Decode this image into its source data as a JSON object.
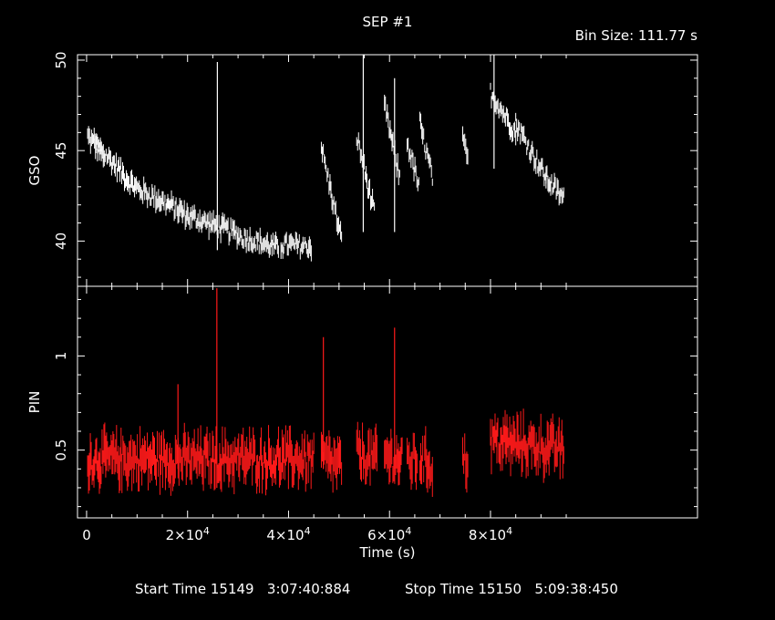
{
  "chart_data": {
    "type": "line",
    "title": "SEP #1",
    "bin_size": "Bin Size: 111.77 s",
    "xlabel": "Time (s)",
    "xlim": [
      -3000,
      120000
    ],
    "x_ticks": [
      {
        "value": 0,
        "label": "0"
      },
      {
        "value": 20000,
        "label": "2×10",
        "exp": "4"
      },
      {
        "value": 40000,
        "label": "4×10",
        "exp": "4"
      },
      {
        "value": 60000,
        "label": "6×10",
        "exp": "4"
      },
      {
        "value": 80000,
        "label": "8×10",
        "exp": "4"
      }
    ],
    "x_max_axis": 96500,
    "footer": {
      "start": "Start Time 15149   3:07:40:884",
      "stop": "Stop Time 15150   5:09:38:450"
    },
    "panels": [
      {
        "name": "GSO",
        "ylabel": "GSO",
        "ylim": [
          37.5,
          50.3
        ],
        "y_ticks": [
          40,
          45,
          50
        ],
        "color": "#ffffff",
        "segments": [
          {
            "x0": 200,
            "x1": 3500,
            "y0": 45.8,
            "y1": 44.6
          },
          {
            "x0": 1500,
            "x1": 9500,
            "y0": 45.5,
            "y1": 43.0
          },
          {
            "x0": 9500,
            "x1": 19000,
            "y0": 43.0,
            "y1": 41.6
          },
          {
            "x0": 19000,
            "x1": 30000,
            "y0": 41.5,
            "y1": 40.4
          },
          {
            "x0": 30000,
            "x1": 38000,
            "y0": 40.3,
            "y1": 39.6
          },
          {
            "x0": 38500,
            "x1": 44500,
            "y0": 39.8,
            "y1": 39.7
          },
          {
            "x0": 46500,
            "x1": 50500,
            "y0": 45.2,
            "y1": 40.0
          },
          {
            "x0": 53500,
            "x1": 57000,
            "y0": 45.8,
            "y1": 41.5
          },
          {
            "x0": 59000,
            "x1": 62000,
            "y0": 47.5,
            "y1": 43.5
          },
          {
            "x0": 63500,
            "x1": 65800,
            "y0": 45.5,
            "y1": 43.0
          },
          {
            "x0": 66000,
            "x1": 68500,
            "y0": 46.5,
            "y1": 43.5
          },
          {
            "x0": 74500,
            "x1": 75500,
            "y0": 45.5,
            "y1": 44.5
          },
          {
            "x0": 80000,
            "x1": 85000,
            "y0": 48.2,
            "y1": 46.0
          },
          {
            "x0": 85000,
            "x1": 91000,
            "y0": 46.5,
            "y1": 43.5
          },
          {
            "x0": 91000,
            "x1": 94500,
            "y0": 43.5,
            "y1": 42.3
          }
        ],
        "spikes": [
          {
            "x": 25900,
            "lo": 39.5,
            "hi": 49.9
          },
          {
            "x": 54800,
            "lo": 40.5,
            "hi": 50.3
          },
          {
            "x": 80700,
            "lo": 44.0,
            "hi": 50.3
          },
          {
            "x": 61000,
            "lo": 40.5,
            "hi": 49.0
          }
        ]
      },
      {
        "name": "PIN",
        "ylabel": "PIN",
        "ylim": [
          0.14,
          1.37
        ],
        "y_ticks": [
          0.5,
          1
        ],
        "y_tick_labels": [
          "0.5",
          "1"
        ],
        "color": "#ff1a1a",
        "segments": [
          {
            "x0": 200,
            "x1": 45000,
            "y0": 0.45,
            "y1": 0.45
          },
          {
            "x0": 46500,
            "x1": 50500,
            "y0": 0.45,
            "y1": 0.42
          },
          {
            "x0": 53500,
            "x1": 57500,
            "y0": 0.48,
            "y1": 0.45
          },
          {
            "x0": 59000,
            "x1": 62500,
            "y0": 0.47,
            "y1": 0.44
          },
          {
            "x0": 63500,
            "x1": 65500,
            "y0": 0.45,
            "y1": 0.44
          },
          {
            "x0": 66000,
            "x1": 68500,
            "y0": 0.45,
            "y1": 0.42
          },
          {
            "x0": 74500,
            "x1": 75500,
            "y0": 0.45,
            "y1": 0.45
          },
          {
            "x0": 80000,
            "x1": 94500,
            "y0": 0.55,
            "y1": 0.5
          }
        ],
        "spikes": [
          {
            "x": 25800,
            "lo": 0.3,
            "hi": 1.36
          },
          {
            "x": 46900,
            "lo": 0.4,
            "hi": 1.1
          },
          {
            "x": 61000,
            "lo": 0.4,
            "hi": 1.15
          },
          {
            "x": 18100,
            "lo": 0.4,
            "hi": 0.85
          }
        ]
      }
    ]
  }
}
